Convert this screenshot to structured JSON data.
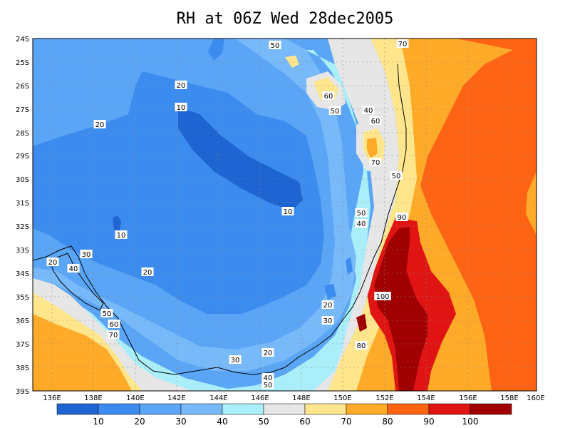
{
  "title": "RH at 06Z Wed 28dec2005",
  "lat_labels": [
    "24S",
    "25S",
    "26S",
    "27S",
    "28S",
    "29S",
    "30S",
    "31S",
    "32S",
    "33S",
    "34S",
    "35S",
    "36S",
    "37S",
    "38S",
    "39S"
  ],
  "lon_labels": [
    "136E",
    "138E",
    "140E",
    "142E",
    "144E",
    "146E",
    "148E",
    "150E",
    "152E",
    "154E",
    "156E",
    "158E",
    "160E"
  ],
  "contour_labels": [
    "50",
    "70",
    "60",
    "50",
    "40",
    "20",
    "10",
    "20",
    "60",
    "70",
    "50",
    "10",
    "50",
    "40",
    "90",
    "10",
    "30",
    "20",
    "40",
    "20",
    "50",
    "60",
    "70",
    "100",
    "20",
    "30",
    "80",
    "30",
    "20",
    "40",
    "50"
  ],
  "colorbar": {
    "labels": [
      "10",
      "20",
      "30",
      "40",
      "50",
      "60",
      "70",
      "80",
      "90",
      "100"
    ],
    "colors": [
      "#1e64d2",
      "#3c8cf0",
      "#5aa5f5",
      "#78b9fa",
      "#aaeefa",
      "#e6e6e6",
      "#ffe68c",
      "#ffaa28",
      "#ff6414",
      "#e11414",
      "#a00000"
    ]
  },
  "colors": {
    "c10": "#1e64d2",
    "c20": "#3c8cf0",
    "c30": "#5aa5f5",
    "c40": "#78b9fa",
    "c50": "#aaeefa",
    "c60": "#e6e6e6",
    "c70": "#ffe68c",
    "c80": "#ffaa28",
    "c90": "#ff6414",
    "c95": "#e11414",
    "c100": "#a00000"
  }
}
